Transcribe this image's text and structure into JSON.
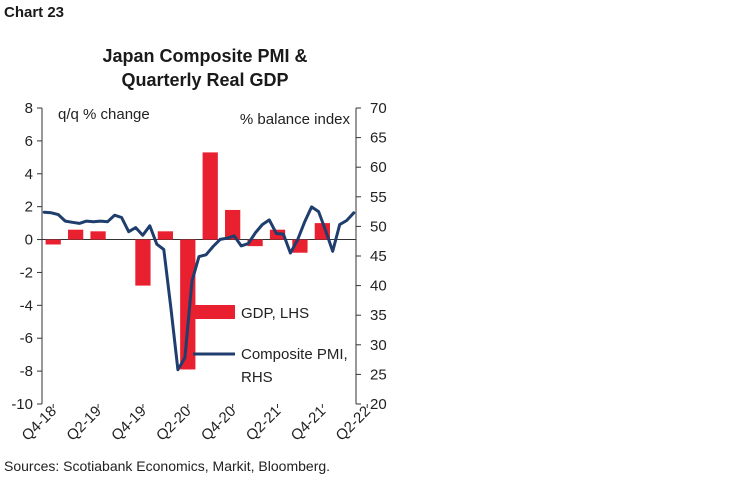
{
  "header": {
    "chart_label": "Chart 23"
  },
  "footer": {
    "source": "Sources: Scotiabank Economics, Markit, Bloomberg."
  },
  "chart_data": {
    "type": "bar+line",
    "title_lines": [
      "Japan Composite PMI &",
      "Quarterly Real GDP"
    ],
    "left_axis": {
      "label": "q/q % change",
      "range": [
        -10,
        8
      ],
      "ticks": [
        8,
        6,
        4,
        2,
        0,
        -2,
        -4,
        -6,
        -8,
        -10
      ]
    },
    "right_axis": {
      "label": "% balance index",
      "range": [
        20,
        70
      ],
      "ticks": [
        70,
        65,
        60,
        55,
        50,
        45,
        40,
        35,
        30,
        25,
        20
      ]
    },
    "x_tick_labels": [
      "Q4-18",
      "Q2-19",
      "Q4-19",
      "Q2-20",
      "Q4-20",
      "Q2-21",
      "Q4-21",
      "Q2-22"
    ],
    "gdp": {
      "legend": "GDP, LHS",
      "color": "#e8202f",
      "quarters": [
        "Q4-18",
        "Q1-19",
        "Q2-19",
        "Q3-19",
        "Q4-19",
        "Q1-20",
        "Q2-20",
        "Q3-20",
        "Q4-20",
        "Q1-21",
        "Q2-21",
        "Q3-21",
        "Q4-21",
        "Q1-22"
      ],
      "values": [
        -0.3,
        0.6,
        0.5,
        0.0,
        -2.8,
        0.5,
        -7.9,
        5.3,
        1.8,
        -0.4,
        0.6,
        -0.8,
        1.0,
        0.0
      ]
    },
    "pmi": {
      "legend_lines": [
        "Composite PMI,",
        "RHS"
      ],
      "color": "#1f3e6e",
      "values": [
        52.4,
        52.3,
        52.0,
        50.9,
        50.7,
        50.5,
        50.9,
        50.8,
        50.9,
        50.8,
        51.9,
        51.5,
        49.1,
        49.8,
        48.5,
        50.1,
        47.0,
        46.1,
        36.2,
        25.8,
        27.8,
        40.8,
        44.9,
        45.2,
        46.6,
        47.8,
        48.0,
        48.4,
        46.7,
        47.1,
        48.9,
        50.3,
        51.1,
        48.8,
        48.7,
        45.5,
        47.7,
        50.7,
        53.3,
        52.5,
        49.3,
        45.8,
        50.3,
        51.0,
        52.3
      ]
    }
  }
}
